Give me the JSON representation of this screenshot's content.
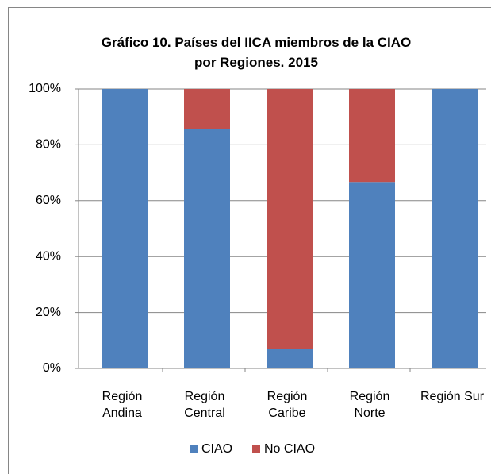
{
  "chart_data": {
    "type": "stacked_bar",
    "title": "Gráfico 10. Países del IICA miembros de la CIAO\npor Regiones.  2015",
    "categories": [
      "Región\nAndina",
      "Región\nCentral",
      "Región\nCaribe",
      "Región\nNorte",
      "Región Sur"
    ],
    "series": [
      {
        "name": "CIAO",
        "color": "#4f81bd",
        "values": [
          100,
          85.7,
          7.1,
          66.7,
          100
        ]
      },
      {
        "name": "No CIAO",
        "color": "#c0504d",
        "values": [
          0,
          14.3,
          92.9,
          33.3,
          0
        ]
      }
    ],
    "ylim": [
      0,
      100
    ],
    "yticks": [
      {
        "value": 0,
        "label": "0%"
      },
      {
        "value": 20,
        "label": "20%"
      },
      {
        "value": 40,
        "label": "40%"
      },
      {
        "value": 60,
        "label": "60%"
      },
      {
        "value": 80,
        "label": "80%"
      },
      {
        "value": 100,
        "label": "100%"
      }
    ],
    "grid": true,
    "legend": "bottom"
  }
}
